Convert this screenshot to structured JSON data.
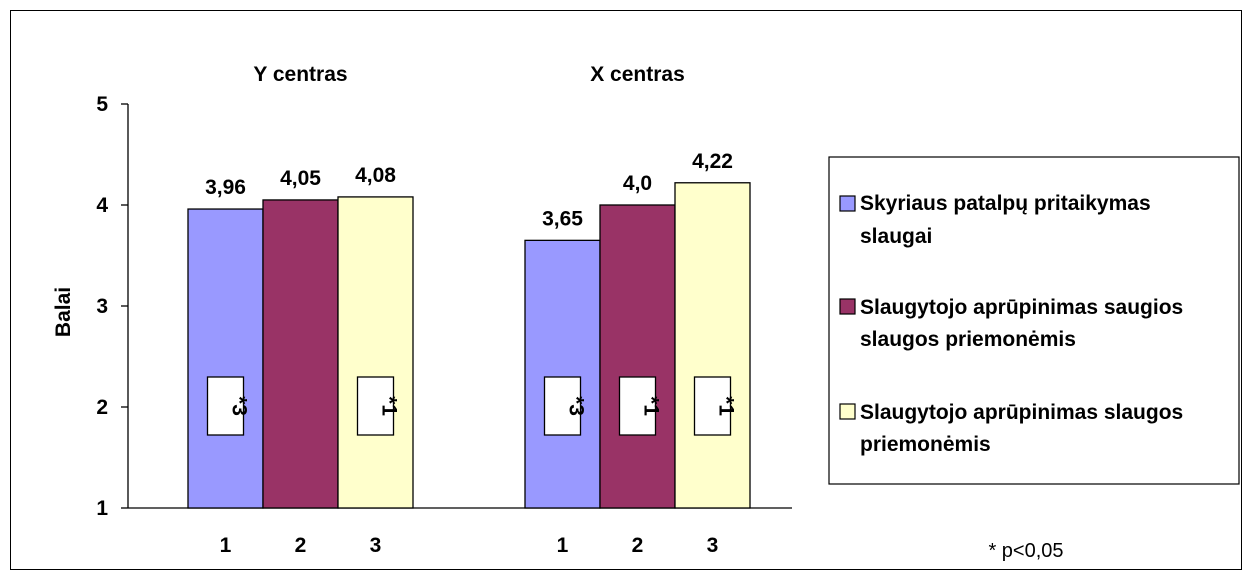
{
  "chart_data": {
    "type": "bar",
    "ylabel": "Balai",
    "ylim": [
      1,
      5
    ],
    "yticks": [
      "1",
      "2",
      "3",
      "4",
      "5"
    ],
    "groups": [
      {
        "title": "Y centras",
        "categories": [
          "1",
          "2",
          "3"
        ],
        "values": [
          3.96,
          4.05,
          4.08
        ],
        "value_labels": [
          "3,96",
          "4,05",
          "4,08"
        ],
        "sig_labels": [
          "*3",
          "",
          "*1"
        ]
      },
      {
        "title": "X centras",
        "categories": [
          "1",
          "2",
          "3"
        ],
        "values": [
          3.65,
          4.0,
          4.22
        ],
        "value_labels": [
          "3,65",
          "4,0",
          "4,22"
        ],
        "sig_labels": [
          "*3",
          "*1",
          "*1"
        ]
      }
    ],
    "series": [
      {
        "name": "Skyriaus patalpų pritaikymas slaugai",
        "color": "#9999FF",
        "legend_lines": [
          "Skyriaus patalpų pritaikymas",
          "slaugai"
        ]
      },
      {
        "name": "Slaugytojo aprūpinimas saugios slaugos priemonėmis",
        "color": "#993366",
        "legend_lines": [
          "Slaugytojo aprūpinimas saugios",
          "slaugos priemonėmis"
        ]
      },
      {
        "name": "Slaugytojo aprūpinimas slaugos priemonėmis",
        "color": "#FFFFCC",
        "legend_lines": [
          "Slaugytojo aprūpinimas slaugos",
          "priemonėmis"
        ]
      }
    ],
    "legend_position": "right",
    "grid": false,
    "note": "* p<0,05"
  }
}
